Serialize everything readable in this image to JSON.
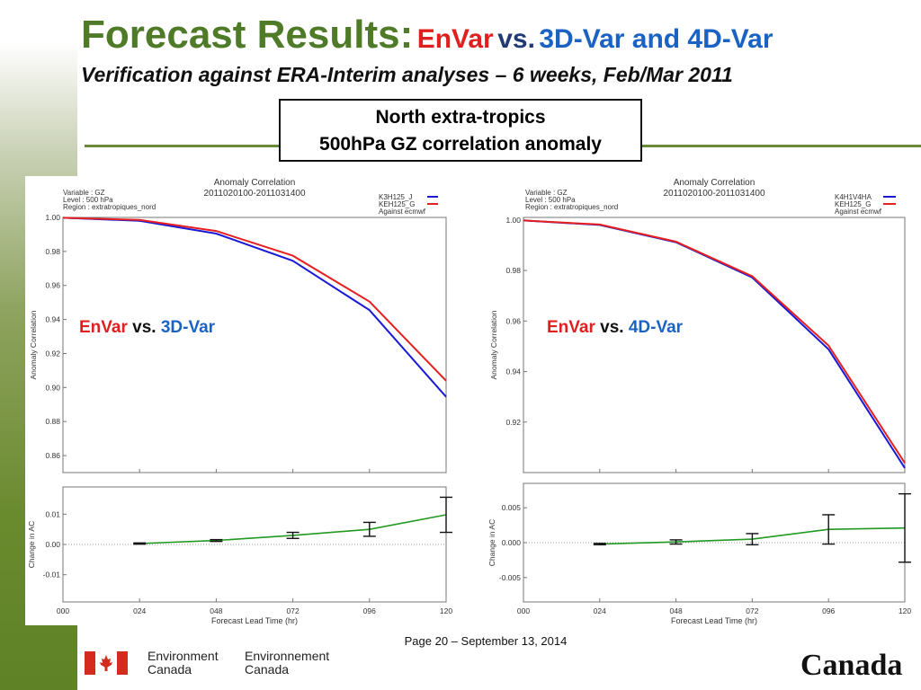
{
  "title": {
    "main": "Forecast Results:",
    "envar": "EnVar",
    "vs": "vs.",
    "rest": "3D-Var and 4D-Var"
  },
  "subtitle": "Verification against ERA-Interim analyses – 6 weeks, Feb/Mar 2011",
  "box": {
    "line1": "North extra-tropics",
    "line2": "500hPa GZ correlation anomaly"
  },
  "overlay_left": {
    "a": "EnVar",
    "b": "vs.",
    "c": "3D-Var"
  },
  "overlay_right": {
    "a": "EnVar",
    "b": "vs.",
    "c": "4D-Var"
  },
  "footer": "Page 20 – September 13, 2014",
  "logo": {
    "en1": "Environment",
    "en2": "Canada",
    "fr1": "Environnement",
    "fr2": "Canada",
    "wordmark": "Canada"
  },
  "colors": {
    "green_title": "#4f7a28",
    "red": "#e02020",
    "blue": "#1a63c4",
    "diff": "#229922"
  },
  "chart_data": [
    {
      "type": "line",
      "title": "Anomaly Correlation",
      "period": "2011020100-2011031400",
      "info": [
        "Variable : GZ",
        "Level : 500 hPa",
        "Region : extratropiques_nord"
      ],
      "legend": [
        "K3H125_J",
        "KEH125_G",
        "Against ecmwf"
      ],
      "x": [
        "000",
        "024",
        "048",
        "072",
        "096",
        "120"
      ],
      "xlabel": "Forecast Lead Time (hr)",
      "ylabel": "Anomaly Correlation",
      "ylim": [
        0.85,
        1.0
      ],
      "yticks": [
        "0.86",
        "0.88",
        "0.90",
        "0.92",
        "0.94",
        "0.96",
        "0.98",
        "1.00"
      ],
      "series": [
        {
          "name": "K3H125_J",
          "color": "#1a1ad6",
          "values": [
            0.9998,
            0.998,
            0.9905,
            0.9745,
            0.9455,
            0.8945
          ]
        },
        {
          "name": "KEH125_G",
          "color": "#e62020",
          "values": [
            0.9998,
            0.9985,
            0.992,
            0.9775,
            0.9505,
            0.904
          ]
        }
      ],
      "diff": {
        "ylabel": "Change in AC",
        "ylim": [
          -0.019,
          0.019
        ],
        "yticks": [
          "0.01",
          "0.00",
          "-0.01"
        ],
        "values": [
          0.0003,
          0.0013,
          0.003,
          0.005,
          0.0098
        ],
        "errors": [
          0.0002,
          0.0003,
          0.001,
          0.0023,
          0.0058
        ]
      }
    },
    {
      "type": "line",
      "title": "Anomaly Correlation",
      "period": "2011020100-2011031400",
      "info": [
        "Variable : GZ",
        "Level : 500 hPa",
        "Region : extratropiques_nord"
      ],
      "legend": [
        "K4H1V4HA",
        "KEH125_G",
        "Against ecmwf"
      ],
      "x": [
        "000",
        "024",
        "048",
        "072",
        "096",
        "120"
      ],
      "xlabel": "Forecast Lead Time (hr)",
      "ylabel": "Anomaly Correlation",
      "ylim": [
        0.9,
        1.001
      ],
      "yticks": [
        "0.92",
        "0.94",
        "0.96",
        "0.98",
        "1.00"
      ],
      "series": [
        {
          "name": "K4H1V4HA",
          "color": "#1a1ad6",
          "values": [
            0.9998,
            0.998,
            0.9912,
            0.9772,
            0.9488,
            0.9018
          ]
        },
        {
          "name": "KEH125_G",
          "color": "#e62020",
          "values": [
            0.9998,
            0.9982,
            0.9914,
            0.9777,
            0.9503,
            0.9038
          ]
        }
      ],
      "diff": {
        "ylabel": "Change in AC",
        "ylim": [
          -0.0085,
          0.0085
        ],
        "yticks": [
          "0.005",
          "0.000",
          "-0.005"
        ],
        "values": [
          -0.0002,
          0.0001,
          0.0005,
          0.0019,
          0.0021
        ],
        "errors": [
          0.0001,
          0.0003,
          0.0008,
          0.0021,
          0.0049
        ]
      }
    }
  ]
}
